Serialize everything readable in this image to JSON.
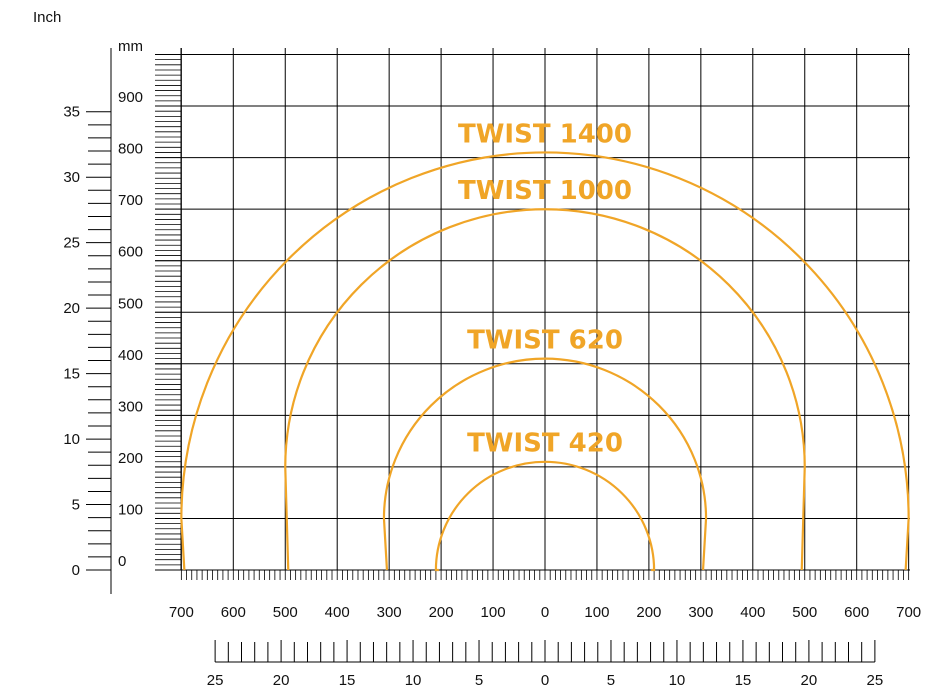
{
  "labels": {
    "inch_axis": "Inch",
    "mm_axis": "mm"
  },
  "colors": {
    "curve": "#F0A527",
    "grid": "#000000"
  },
  "chart_data": {
    "type": "diagram",
    "x_mm_ticks": [
      "700",
      "600",
      "500",
      "400",
      "300",
      "200",
      "100",
      "0",
      "100",
      "200",
      "300",
      "400",
      "500",
      "600",
      "700"
    ],
    "x_inch_ticks": [
      "25",
      "20",
      "15",
      "10",
      "5",
      "0",
      "5",
      "10",
      "15",
      "20",
      "25"
    ],
    "y_mm_ticks": [
      "0",
      "100",
      "200",
      "300",
      "400",
      "500",
      "600",
      "700",
      "800",
      "900"
    ],
    "y_inch_ticks": [
      "0",
      "5",
      "10",
      "15",
      "20",
      "25",
      "30",
      "35"
    ],
    "curves": [
      {
        "name": "TWIST 1400",
        "half_width_mm": 700,
        "straight_mm": 100,
        "top_mm": 810
      },
      {
        "name": "TWIST 1000",
        "half_width_mm": 500,
        "straight_mm": 200,
        "top_mm": 700
      },
      {
        "name": "TWIST 620",
        "half_width_mm": 310,
        "straight_mm": 100,
        "top_mm": 410
      },
      {
        "name": "TWIST 420",
        "half_width_mm": 210,
        "straight_mm": 0,
        "top_mm": 210
      }
    ]
  }
}
